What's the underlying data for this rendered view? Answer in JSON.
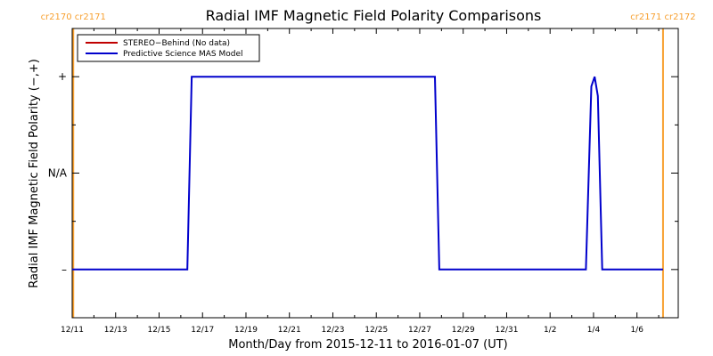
{
  "chart_data": {
    "type": "line",
    "title": "Radial IMF Magnetic Field Polarity Comparisons",
    "xlabel": "Month/Day from 2015-12-11 to 2016-01-07 (UT)",
    "ylabel": "Radial IMF Magnetic Field Polarity (−,+)",
    "x_range": [
      "2015-12-11",
      "2016-01-07"
    ],
    "xlim_days": [
      0,
      27.9
    ],
    "ylim": [
      -1.5,
      1.5
    ],
    "x_ticks": [
      {
        "label": "12/11",
        "day": 0
      },
      {
        "label": "12/13",
        "day": 2
      },
      {
        "label": "12/15",
        "day": 4
      },
      {
        "label": "12/17",
        "day": 6
      },
      {
        "label": "12/19",
        "day": 8
      },
      {
        "label": "12/21",
        "day": 10
      },
      {
        "label": "12/23",
        "day": 12
      },
      {
        "label": "12/25",
        "day": 14
      },
      {
        "label": "12/27",
        "day": 16
      },
      {
        "label": "12/29",
        "day": 18
      },
      {
        "label": "12/31",
        "day": 20
      },
      {
        "label": "1/2",
        "day": 22
      },
      {
        "label": "1/4",
        "day": 24
      },
      {
        "label": "1/6",
        "day": 26
      }
    ],
    "y_ticks": [
      {
        "label": "+",
        "value": 1
      },
      {
        "label": "N/A",
        "value": 0
      },
      {
        "label": "–",
        "value": -1
      }
    ],
    "carrington_markers": [
      {
        "day": 0.05,
        "label": "cr2170 cr2171",
        "color": "#f7a030"
      },
      {
        "day": 27.2,
        "label": "cr2171 cr2172",
        "color": "#f7a030"
      }
    ],
    "legend_placement": "top-left",
    "series": [
      {
        "name": "STEREO−Behind (No data)",
        "color": "#c00000",
        "x": [],
        "y": []
      },
      {
        "name": "Predictive Science MAS Model",
        "color": "#0000cc",
        "x": [
          0,
          5.3,
          5.5,
          5.55,
          16.7,
          16.9,
          17.0,
          23.65,
          23.9,
          24.05,
          24.2,
          24.4,
          27.2
        ],
        "y": [
          -1,
          -1,
          1,
          1,
          1,
          -1,
          -1,
          -1,
          0.9,
          1,
          0.8,
          -1,
          -1
        ]
      }
    ]
  }
}
